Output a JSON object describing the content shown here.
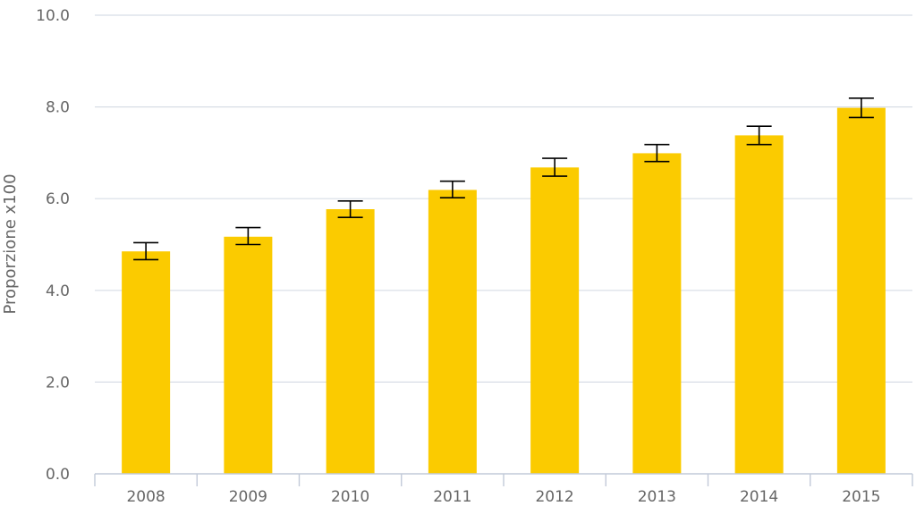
{
  "chart_data": {
    "type": "bar",
    "title": "",
    "xlabel": "",
    "ylabel": "Proporzione x100",
    "categories": [
      "2008",
      "2009",
      "2010",
      "2011",
      "2012",
      "2013",
      "2014",
      "2015"
    ],
    "values": [
      4.85,
      5.17,
      5.77,
      6.19,
      6.68,
      6.99,
      7.38,
      7.98
    ],
    "error_low": [
      4.67,
      5.0,
      5.59,
      6.02,
      6.49,
      6.81,
      7.18,
      7.77
    ],
    "error_high": [
      5.04,
      5.37,
      5.95,
      6.38,
      6.88,
      7.18,
      7.58,
      8.19
    ],
    "ylim": [
      0,
      10
    ],
    "yticks": [
      "0.0",
      "2.0",
      "4.0",
      "6.0",
      "8.0",
      "10.0"
    ],
    "grid": true,
    "legend": "none",
    "colors": {
      "bar": "#fbcb00",
      "error_bar": "#000000",
      "grid": "#d8dde6",
      "axis": "#c2cad8",
      "text": "#666666"
    }
  }
}
